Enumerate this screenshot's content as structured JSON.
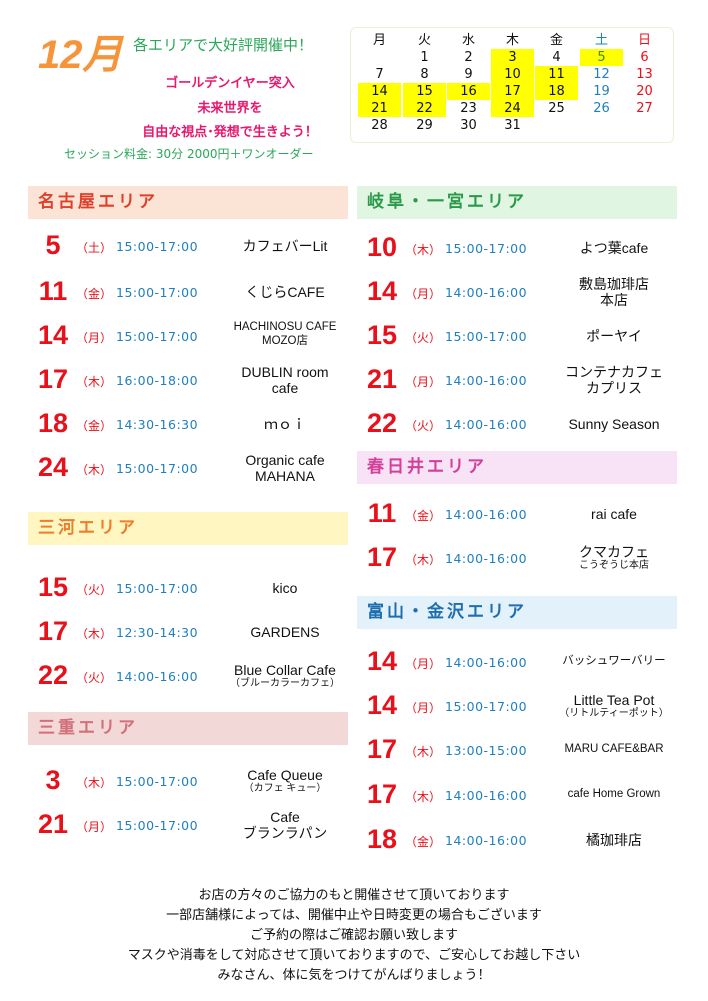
{
  "header": {
    "month": "12月",
    "subtitle": "各エリアで大好評開催中！",
    "lines": [
      "ゴールデンイヤー突入",
      "未来世界を",
      "自由な視点･発想で生きよう！"
    ],
    "fee": "セッション料金: 30分 2000円＋ワンオーダー"
  },
  "calendar": {
    "weekdays": [
      "月",
      "火",
      "水",
      "木",
      "金",
      "土",
      "日"
    ],
    "weeks": [
      [
        "",
        "1",
        "2",
        "3",
        "4",
        "5",
        "6"
      ],
      [
        "7",
        "8",
        "9",
        "10",
        "11",
        "12",
        "13"
      ],
      [
        "14",
        "15",
        "16",
        "17",
        "18",
        "19",
        "20"
      ],
      [
        "21",
        "22",
        "23",
        "24",
        "25",
        "26",
        "27"
      ],
      [
        "28",
        "29",
        "30",
        "31",
        "",
        "",
        ""
      ]
    ],
    "highlighted": [
      "3",
      "5",
      "10",
      "11",
      "14",
      "15",
      "16",
      "17",
      "18",
      "21",
      "22",
      "24"
    ],
    "colors": {
      "highlight": "#ffff00",
      "saturday": "#1f7fc0",
      "sunday": "#e8101a"
    }
  },
  "areas": [
    {
      "name": "名古屋エリア",
      "bg": "#fbe3d6",
      "color": "#e0402a",
      "events": [
        {
          "day": "5",
          "weekday": "（土）",
          "time": "15:00-17:00",
          "venue": "カフェバーLit"
        },
        {
          "day": "11",
          "weekday": "（金）",
          "time": "15:00-17:00",
          "venue": "くじらCAFE"
        },
        {
          "day": "14",
          "weekday": "（月）",
          "time": "15:00-17:00",
          "venue": "HACHINOSU CAFE",
          "venue2": "MOZO店",
          "small": true
        },
        {
          "day": "17",
          "weekday": "（木）",
          "time": "16:00-18:00",
          "venue": "DUBLIN room",
          "venue2": "cafe"
        },
        {
          "day": "18",
          "weekday": "（金）",
          "time": "14:30-16:30",
          "venue": "ｍｏｉ"
        },
        {
          "day": "24",
          "weekday": "（木）",
          "time": "15:00-17:00",
          "venue": "Organic cafe",
          "venue2": "MAHANA"
        }
      ]
    },
    {
      "name": "三河エリア",
      "bg": "#fff6c2",
      "color": "#ef7d2a",
      "events": [
        {
          "day": "15",
          "weekday": "（火）",
          "time": "15:00-17:00",
          "venue": "kico"
        },
        {
          "day": "17",
          "weekday": "（木）",
          "time": "12:30-14:30",
          "venue": "GARDENS"
        },
        {
          "day": "22",
          "weekday": "（火）",
          "time": "14:00-16:00",
          "venue": "Blue Collar Cafe",
          "sub": "（ブルーカラーカフェ）"
        }
      ]
    },
    {
      "name": "三重エリア",
      "bg": "#f3d8d8",
      "color": "#d2707a",
      "events": [
        {
          "day": "3",
          "weekday": "（木）",
          "time": "15:00-17:00",
          "venue": "Cafe Queue",
          "sub": "（カフェ キュー）"
        },
        {
          "day": "21",
          "weekday": "（月）",
          "time": "15:00-17:00",
          "venue": "Cafe",
          "venue2": "ブランラパン"
        }
      ]
    },
    {
      "name": "岐阜・一宮エリア",
      "bg": "#e0f5e2",
      "color": "#2a9a4a",
      "events": [
        {
          "day": "10",
          "weekday": "（木）",
          "time": "15:00-17:00",
          "venue": "よつ葉cafe"
        },
        {
          "day": "14",
          "weekday": "（月）",
          "time": "14:00-16:00",
          "venue": "敷島珈琲店",
          "venue2": "本店"
        },
        {
          "day": "15",
          "weekday": "（火）",
          "time": "15:00-17:00",
          "venue": "ポーヤイ"
        },
        {
          "day": "21",
          "weekday": "（月）",
          "time": "14:00-16:00",
          "venue": "コンテナカフェ",
          "venue2": "カプリス"
        },
        {
          "day": "22",
          "weekday": "（火）",
          "time": "14:00-16:00",
          "venue": "Sunny Season"
        }
      ]
    },
    {
      "name": "春日井エリア",
      "bg": "#f8e2f6",
      "color": "#d2409a",
      "events": [
        {
          "day": "11",
          "weekday": "（金）",
          "time": "14:00-16:00",
          "venue": "rai cafe"
        },
        {
          "day": "17",
          "weekday": "（木）",
          "time": "14:00-16:00",
          "venue": "クマカフェ",
          "sub": "こうぞうじ本店"
        }
      ]
    },
    {
      "name": "富山・金沢エリア",
      "bg": "#e3f1fb",
      "color": "#1f6fb0",
      "events": [
        {
          "day": "14",
          "weekday": "（月）",
          "time": "14:00-16:00",
          "venue": "バッシュワーバリー",
          "small": true
        },
        {
          "day": "14",
          "weekday": "（月）",
          "time": "15:00-17:00",
          "venue": "Little Tea Pot",
          "sub": "（リトルティーポット）"
        },
        {
          "day": "17",
          "weekday": "（木）",
          "time": "13:00-15:00",
          "venue": "MARU CAFE&BAR",
          "small": true
        },
        {
          "day": "17",
          "weekday": "（木）",
          "time": "14:00-16:00",
          "venue": "cafe Home Grown",
          "small": true
        },
        {
          "day": "18",
          "weekday": "（金）",
          "time": "14:00-16:00",
          "venue": "橘珈琲店"
        }
      ]
    }
  ],
  "footer": [
    "お店の方々のご協力のもと開催させて頂いております",
    "一部店舗様によっては、開催中止や日時変更の場合もございます",
    "ご予約の際はご確認お願い致します",
    "マスクや消毒をして対応させて頂いておりますので、ご安心してお越し下さい",
    "みなさん、体に気をつけてがんばりましょう！"
  ]
}
